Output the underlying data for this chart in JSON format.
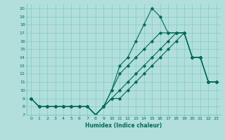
{
  "xlabel": "Humidex (Indice chaleur)",
  "ylabel": "",
  "background_color": "#b2dfdb",
  "grid_color": "#80cbc4",
  "line_color": "#00695c",
  "xlim": [
    -0.5,
    23.5
  ],
  "ylim": [
    7,
    20.5
  ],
  "xticks": [
    0,
    1,
    2,
    3,
    4,
    5,
    6,
    7,
    8,
    9,
    10,
    11,
    12,
    13,
    14,
    15,
    16,
    17,
    18,
    19,
    20,
    21,
    22,
    23
  ],
  "yticks": [
    7,
    8,
    9,
    10,
    11,
    12,
    13,
    14,
    15,
    16,
    17,
    18,
    19,
    20
  ],
  "lines": [
    {
      "x": [
        0,
        1,
        2,
        3,
        4,
        5,
        6,
        7,
        8,
        9,
        10,
        11,
        12,
        13,
        14,
        15,
        16,
        17,
        18,
        19,
        20,
        21,
        22,
        23
      ],
      "y": [
        9,
        8,
        8,
        8,
        8,
        8,
        8,
        8,
        7,
        8,
        10,
        13,
        14,
        16,
        18,
        20,
        19,
        17,
        17,
        17,
        14,
        14,
        11,
        11
      ]
    },
    {
      "x": [
        0,
        1,
        2,
        3,
        4,
        5,
        6,
        7,
        8,
        9,
        10,
        11,
        12,
        13,
        14,
        15,
        16,
        17,
        18,
        19,
        20,
        21,
        22,
        23
      ],
      "y": [
        9,
        8,
        8,
        8,
        8,
        8,
        8,
        8,
        7,
        8,
        10,
        12,
        13,
        14,
        15,
        16,
        17,
        17,
        17,
        17,
        14,
        14,
        11,
        11
      ]
    },
    {
      "x": [
        0,
        1,
        2,
        3,
        4,
        5,
        6,
        7,
        8,
        9,
        10,
        11,
        12,
        13,
        14,
        15,
        16,
        17,
        18,
        19,
        20,
        21,
        22,
        23
      ],
      "y": [
        9,
        8,
        8,
        8,
        8,
        8,
        8,
        8,
        7,
        8,
        9,
        10,
        11,
        12,
        13,
        14,
        15,
        16,
        17,
        17,
        14,
        14,
        11,
        11
      ]
    },
    {
      "x": [
        0,
        1,
        2,
        3,
        4,
        5,
        6,
        7,
        8,
        9,
        10,
        11,
        12,
        13,
        14,
        15,
        16,
        17,
        18,
        19,
        20,
        21,
        22,
        23
      ],
      "y": [
        9,
        8,
        8,
        8,
        8,
        8,
        8,
        8,
        7,
        8,
        9,
        9,
        10,
        11,
        12,
        13,
        14,
        15,
        16,
        17,
        14,
        14,
        11,
        11
      ]
    }
  ]
}
